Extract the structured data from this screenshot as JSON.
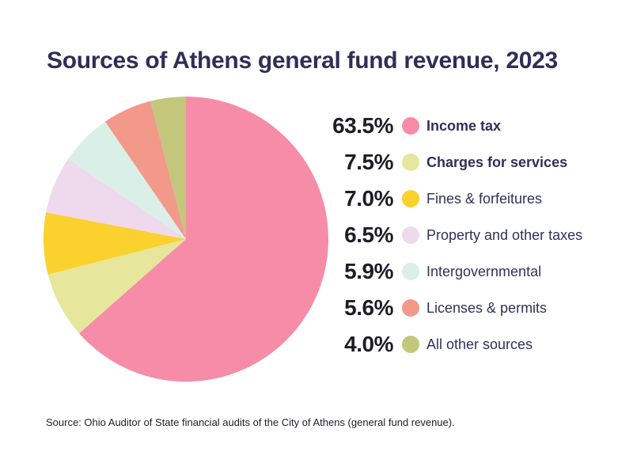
{
  "chart_data": {
    "type": "pie",
    "title": "Sources of Athens general fund revenue, 2023",
    "legend_position": "right",
    "direction": "clockwise",
    "start_angle_deg": 0,
    "total": 100,
    "series": [
      {
        "label": "Income tax",
        "value": 63.5,
        "display": "63.5%",
        "color": "#f78ca9",
        "bold": true
      },
      {
        "label": "Charges for services",
        "value": 7.5,
        "display": "7.5%",
        "color": "#e6e69c",
        "bold": true
      },
      {
        "label": "Fines & forfeitures",
        "value": 7.0,
        "display": "7.0%",
        "color": "#fbd12d",
        "bold": false
      },
      {
        "label": "Property and other taxes",
        "value": 6.5,
        "display": "6.5%",
        "color": "#efd9ed",
        "bold": false
      },
      {
        "label": "Intergovernmental",
        "value": 5.9,
        "display": "5.9%",
        "color": "#daefe7",
        "bold": false
      },
      {
        "label": "Licenses & permits",
        "value": 5.6,
        "display": "5.6%",
        "color": "#f3998a",
        "bold": false
      },
      {
        "label": "All other sources",
        "value": 4.0,
        "display": "4.0%",
        "color": "#c2c77c",
        "bold": false
      }
    ],
    "source": "Source: Ohio Auditor of State financial audits of the City of Athens (general fund revenue).",
    "colors": {
      "title_text": "#312d58",
      "percent_text": "#1e1d27",
      "label_text": "#32305a",
      "background": "#ffffff"
    }
  }
}
